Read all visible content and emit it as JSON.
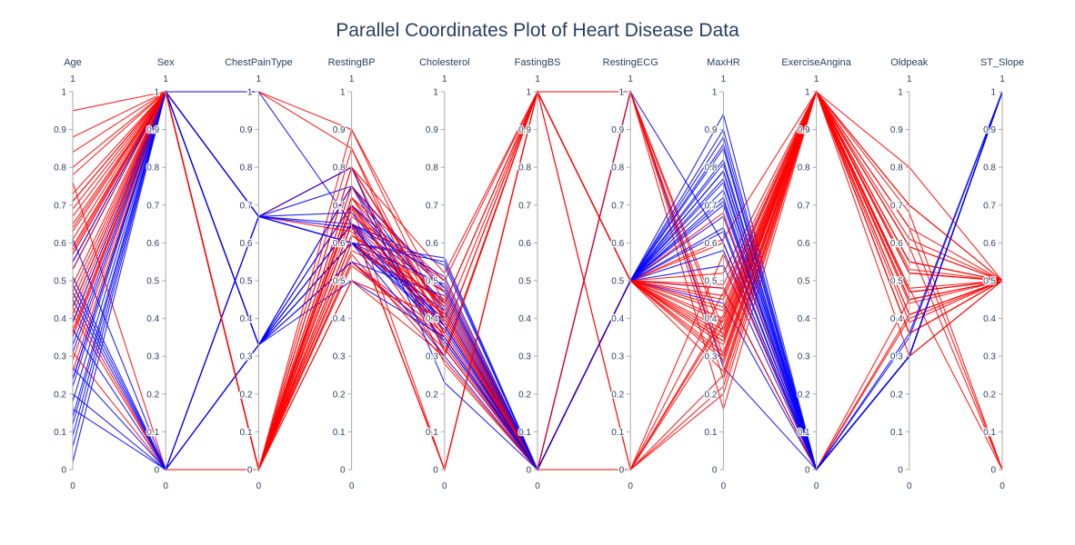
{
  "chart_data": {
    "type": "parallel_coordinates",
    "title": "Parallel Coordinates Plot of Heart Disease Data",
    "dimensions": [
      "Age",
      "Sex",
      "ChestPainType",
      "RestingBP",
      "Cholesterol",
      "FastingBS",
      "RestingECG",
      "MaxHR",
      "ExerciseAngina",
      "Oldpeak",
      "ST_Slope"
    ],
    "range": [
      0,
      1
    ],
    "range_min_label": "0",
    "range_max_label": "1",
    "ticks": [
      "0",
      "0.1",
      "0.2",
      "0.3",
      "0.4",
      "0.5",
      "0.6",
      "0.7",
      "0.8",
      "0.9",
      "1"
    ],
    "color_scale": [
      "#0000ff",
      "#ff0000"
    ],
    "samples": [
      {
        "values": [
          0.24,
          1,
          0.33,
          0.7,
          0.48,
          0,
          0.5,
          0.79,
          0,
          0.3,
          1
        ],
        "target": 0
      },
      {
        "values": [
          0.43,
          0,
          0.67,
          0.8,
          0.28,
          0,
          0.5,
          0.68,
          0,
          0.41,
          0.5
        ],
        "target": 1
      },
      {
        "values": [
          0.18,
          1,
          0.33,
          0.65,
          0.47,
          0,
          1,
          0.27,
          0,
          0.3,
          1
        ],
        "target": 0
      },
      {
        "values": [
          0.41,
          0,
          0,
          0.69,
          0.35,
          0,
          0.5,
          0.34,
          1,
          0.47,
          0.5
        ],
        "target": 1
      },
      {
        "values": [
          0.53,
          1,
          0.67,
          0.75,
          0.32,
          0,
          0.5,
          0.44,
          0,
          0.3,
          1
        ],
        "target": 0
      },
      {
        "values": [
          0.22,
          1,
          0.67,
          0.6,
          0.56,
          0,
          0.5,
          0.79,
          0,
          0.3,
          1
        ],
        "target": 0
      },
      {
        "values": [
          0.45,
          0,
          0.33,
          0.65,
          0.39,
          0,
          0.5,
          0.77,
          0,
          0.3,
          1
        ],
        "target": 0
      },
      {
        "values": [
          0.43,
          1,
          0.33,
          0.55,
          0.34,
          0,
          0.5,
          0.54,
          0,
          0.3,
          1
        ],
        "target": 0
      },
      {
        "values": [
          0.29,
          1,
          0,
          0.7,
          0.35,
          0,
          0.5,
          0.61,
          1,
          0.47,
          0.5
        ],
        "target": 1
      },
      {
        "values": [
          0.47,
          0,
          0.33,
          0.6,
          0.55,
          0,
          0.5,
          0.48,
          0,
          0.3,
          1
        ],
        "target": 0
      },
      {
        "values": [
          0.31,
          0,
          0,
          0.5,
          0.3,
          1,
          0.5,
          0.42,
          1,
          0.36,
          0.5
        ],
        "target": 1
      },
      {
        "values": [
          0.57,
          1,
          0,
          0.65,
          0.43,
          0,
          0,
          0.25,
          1,
          0.55,
          0.5
        ],
        "target": 1
      },
      {
        "values": [
          0.37,
          1,
          0,
          0.7,
          0,
          1,
          0.5,
          0.36,
          1,
          0.52,
          0.5
        ],
        "target": 1
      },
      {
        "values": [
          0.65,
          1,
          0,
          0.75,
          0.38,
          0,
          1,
          0.3,
          1,
          0.64,
          0
        ],
        "target": 1
      },
      {
        "values": [
          0.55,
          1,
          0,
          0.6,
          0.45,
          0,
          0,
          0.57,
          0,
          0.45,
          0.5
        ],
        "target": 1
      },
      {
        "values": [
          0.71,
          1,
          0.67,
          0.8,
          0.52,
          1,
          0.5,
          0.4,
          1,
          0.7,
          0.5
        ],
        "target": 1
      },
      {
        "values": [
          0.41,
          1,
          0,
          0.57,
          0.29,
          0,
          0.5,
          0.52,
          1,
          0.41,
          0.5
        ],
        "target": 1
      },
      {
        "values": [
          0.76,
          0,
          0,
          0.72,
          0.5,
          0,
          1,
          0.35,
          1,
          0.36,
          0.5
        ],
        "target": 1
      },
      {
        "values": [
          0.49,
          1,
          0,
          0.65,
          0,
          1,
          0.5,
          0.45,
          1,
          0.48,
          0
        ],
        "target": 1
      },
      {
        "values": [
          0.59,
          1,
          0.67,
          0.63,
          0.41,
          0,
          0.5,
          0.48,
          0,
          0.3,
          0.5
        ],
        "target": 1
      },
      {
        "values": [
          0.84,
          1,
          0,
          0.8,
          0.4,
          1,
          1,
          0.16,
          1,
          0.45,
          0.5
        ],
        "target": 1
      },
      {
        "values": [
          0.35,
          1,
          1,
          0.85,
          0.36,
          0,
          0.5,
          0.6,
          0,
          0.4,
          0.5
        ],
        "target": 1
      },
      {
        "values": [
          0.63,
          1,
          0,
          0.9,
          0.39,
          0,
          0,
          0.38,
          1,
          0.59,
          0.5
        ],
        "target": 1
      },
      {
        "values": [
          0.27,
          0,
          0.67,
          0.6,
          0.42,
          0,
          0.5,
          0.81,
          0,
          0.3,
          1
        ],
        "target": 0
      },
      {
        "values": [
          0.61,
          1,
          0,
          0.65,
          0.3,
          1,
          0,
          0.22,
          1,
          0.61,
          0.5
        ],
        "target": 1
      },
      {
        "values": [
          0.39,
          1,
          0,
          0.54,
          0.35,
          0,
          0.5,
          0.33,
          1,
          0.53,
          0.5
        ],
        "target": 1
      },
      {
        "values": [
          0.12,
          1,
          0.33,
          0.6,
          0.4,
          0,
          0.5,
          0.88,
          0,
          0.3,
          1
        ],
        "target": 0
      },
      {
        "values": [
          0.33,
          1,
          0.33,
          0.7,
          0.44,
          0,
          0.5,
          0.64,
          0,
          0.3,
          1
        ],
        "target": 0
      },
      {
        "values": [
          0.51,
          0,
          0.33,
          0.75,
          0.42,
          0,
          1,
          0.6,
          0,
          0.36,
          1
        ],
        "target": 0
      },
      {
        "values": [
          0.69,
          1,
          0,
          0.55,
          0.36,
          1,
          0.5,
          0.31,
          1,
          0.39,
          0.5
        ],
        "target": 1
      },
      {
        "values": [
          0.06,
          1,
          0.67,
          0.65,
          0.54,
          0,
          0.5,
          0.85,
          0,
          0.3,
          1
        ],
        "target": 0
      },
      {
        "values": [
          0.2,
          0,
          0.67,
          0.68,
          0.38,
          0,
          0.5,
          0.72,
          0,
          0.3,
          1
        ],
        "target": 0
      },
      {
        "values": [
          0.73,
          1,
          1,
          0.9,
          0.44,
          1,
          1,
          0.37,
          1,
          0.8,
          0.5
        ],
        "target": 1
      },
      {
        "values": [
          0.14,
          1,
          0.33,
          0.75,
          0.48,
          0,
          0.5,
          0.9,
          0,
          0.3,
          1
        ],
        "target": 0
      },
      {
        "values": [
          0.45,
          1,
          0,
          0.62,
          0.47,
          0,
          0.5,
          0.43,
          1,
          0.3,
          0.5
        ],
        "target": 1
      },
      {
        "values": [
          0.57,
          1,
          0,
          0.65,
          0,
          1,
          0.5,
          0.29,
          1,
          0.41,
          0.5
        ],
        "target": 1
      },
      {
        "values": [
          0.02,
          1,
          0.33,
          0.5,
          0.35,
          0,
          0.5,
          0.94,
          0,
          0.3,
          1
        ],
        "target": 0
      },
      {
        "values": [
          0.49,
          0,
          0.67,
          0.6,
          0.3,
          0,
          0.5,
          0.7,
          0,
          0.3,
          1
        ],
        "target": 0
      },
      {
        "values": [
          0.95,
          1,
          0,
          0.75,
          0.47,
          0,
          1,
          0.24,
          1,
          0.59,
          0.5
        ],
        "target": 1
      },
      {
        "values": [
          0.39,
          1,
          0.67,
          0.8,
          0.23,
          0,
          0.5,
          0.58,
          0,
          0.3,
          1
        ],
        "target": 0
      },
      {
        "values": [
          0.67,
          1,
          0,
          0.8,
          0.41,
          0,
          0,
          0.2,
          1,
          0.44,
          0.5
        ],
        "target": 1
      },
      {
        "values": [
          0.8,
          1,
          0,
          0.7,
          0.33,
          0,
          0.5,
          0.26,
          1,
          0.68,
          0
        ],
        "target": 1
      },
      {
        "values": [
          0.26,
          1,
          0,
          0.55,
          0.32,
          0,
          0.5,
          0.49,
          1,
          0.52,
          0.5
        ],
        "target": 1
      },
      {
        "values": [
          0.58,
          1,
          0,
          0.67,
          0.5,
          1,
          0,
          0.4,
          1,
          0.47,
          0.5
        ],
        "target": 1
      },
      {
        "values": [
          0.61,
          0,
          0.33,
          0.65,
          0.51,
          0,
          0.5,
          0.63,
          0,
          0.3,
          1
        ],
        "target": 0
      },
      {
        "values": [
          0.09,
          1,
          0.67,
          0.6,
          0.38,
          0,
          0.5,
          0.74,
          0,
          0.3,
          1
        ],
        "target": 0
      },
      {
        "values": [
          0.36,
          1,
          0,
          0.6,
          0.41,
          0,
          0,
          0.47,
          1,
          0.55,
          0.5
        ],
        "target": 1
      },
      {
        "values": [
          0.47,
          1,
          0,
          0.72,
          0.43,
          0,
          0.5,
          0.35,
          1,
          0.64,
          0.5
        ],
        "target": 1
      },
      {
        "values": [
          0.55,
          1,
          0.33,
          0.6,
          0.37,
          0,
          0.5,
          0.67,
          0,
          0.3,
          1
        ],
        "target": 0
      },
      {
        "values": [
          0.88,
          1,
          0,
          0.85,
          0.31,
          1,
          0.5,
          0.34,
          1,
          0.7,
          0.5
        ],
        "target": 1
      },
      {
        "values": [
          0.31,
          1,
          1,
          0.65,
          0.34,
          0,
          0.5,
          0.71,
          0,
          0.35,
          1
        ],
        "target": 0
      },
      {
        "values": [
          0.43,
          1,
          0,
          0.58,
          0.45,
          0,
          0.5,
          0.39,
          1,
          0.59,
          0
        ],
        "target": 1
      },
      {
        "values": [
          0.16,
          0,
          0.33,
          0.55,
          0.46,
          0,
          0.5,
          0.82,
          0,
          0.3,
          1
        ],
        "target": 0
      },
      {
        "values": [
          0.64,
          1,
          0,
          0.72,
          0.36,
          1,
          0.5,
          0.46,
          1,
          0.48,
          0.5
        ],
        "target": 1
      },
      {
        "values": [
          0.53,
          1,
          0,
          0.5,
          0.4,
          0,
          0,
          0.41,
          1,
          0.36,
          0.5
        ],
        "target": 1
      },
      {
        "values": [
          0.37,
          0,
          0.67,
          0.6,
          0.49,
          0,
          0.5,
          0.76,
          0,
          0.3,
          1
        ],
        "target": 0
      },
      {
        "values": [
          0.71,
          1,
          0,
          0.7,
          0.4,
          0,
          0.5,
          0.3,
          1,
          0.55,
          0.5
        ],
        "target": 1
      },
      {
        "values": [
          0.24,
          1,
          0.67,
          0.64,
          0.38,
          0,
          0.5,
          0.86,
          0,
          0.3,
          1
        ],
        "target": 0
      },
      {
        "values": [
          0.78,
          1,
          0,
          0.62,
          0.44,
          1,
          1,
          0.28,
          1,
          0.52,
          0.5
        ],
        "target": 1
      },
      {
        "values": [
          0.59,
          1,
          0,
          0.65,
          0,
          1,
          0.5,
          0.37,
          1,
          0.45,
          0.5
        ],
        "target": 1
      }
    ]
  }
}
